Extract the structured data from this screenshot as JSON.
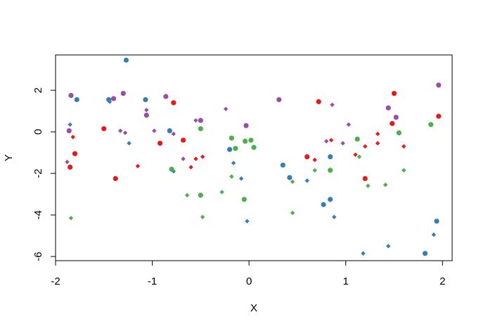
{
  "chart_data": {
    "type": "scatter",
    "xlabel": "X",
    "ylabel": "Y",
    "xlim": [
      -2.0,
      2.1
    ],
    "ylim": [
      -6.2,
      3.7
    ],
    "x_ticks": [
      -2,
      -1,
      0,
      1,
      2
    ],
    "y_ticks": [
      -6,
      -4,
      -2,
      0,
      2
    ],
    "x_tick_labels": [
      "-2",
      "-1",
      "0",
      "1",
      "2"
    ],
    "y_tick_labels": [
      "-6",
      "-4",
      "-2",
      "0",
      "2"
    ],
    "grid": false,
    "series": [
      {
        "color": "#e41a1c",
        "points": [
          {
            "x": -1.85,
            "y": -1.7,
            "shape": "circle"
          },
          {
            "x": -1.8,
            "y": -1.05,
            "shape": "circle"
          },
          {
            "x": -1.82,
            "y": -0.25,
            "shape": "diamond"
          },
          {
            "x": -1.5,
            "y": 0.15,
            "shape": "circle"
          },
          {
            "x": -1.38,
            "y": -2.25,
            "shape": "circle"
          },
          {
            "x": -1.15,
            "y": -1.65,
            "shape": "diamond"
          },
          {
            "x": -0.92,
            "y": -0.55,
            "shape": "circle"
          },
          {
            "x": -0.78,
            "y": 1.4,
            "shape": "circle"
          },
          {
            "x": -0.68,
            "y": -0.4,
            "shape": "circle"
          },
          {
            "x": -0.6,
            "y": -1.7,
            "shape": "diamond"
          },
          {
            "x": -0.55,
            "y": -1.3,
            "shape": "diamond"
          },
          {
            "x": -0.48,
            "y": -1.2,
            "shape": "diamond"
          },
          {
            "x": 0.6,
            "y": -1.2,
            "shape": "circle"
          },
          {
            "x": 0.68,
            "y": -1.35,
            "shape": "diamond"
          },
          {
            "x": 0.72,
            "y": 1.45,
            "shape": "circle"
          },
          {
            "x": 0.85,
            "y": -0.4,
            "shape": "diamond"
          },
          {
            "x": 1.1,
            "y": -1.1,
            "shape": "diamond"
          },
          {
            "x": 1.2,
            "y": -2.25,
            "shape": "circle"
          },
          {
            "x": 1.2,
            "y": -0.7,
            "shape": "diamond"
          },
          {
            "x": 1.33,
            "y": -0.1,
            "shape": "diamond"
          },
          {
            "x": 1.33,
            "y": -0.55,
            "shape": "diamond"
          },
          {
            "x": 1.48,
            "y": 0.4,
            "shape": "circle"
          },
          {
            "x": 1.5,
            "y": 1.85,
            "shape": "circle"
          },
          {
            "x": 1.6,
            "y": -0.7,
            "shape": "diamond"
          },
          {
            "x": 1.96,
            "y": 0.75,
            "shape": "circle"
          }
        ]
      },
      {
        "color": "#377eb8",
        "points": [
          {
            "x": -1.85,
            "y": 0.35,
            "shape": "diamond"
          },
          {
            "x": -1.78,
            "y": 1.55,
            "shape": "circle"
          },
          {
            "x": -1.45,
            "y": 1.55,
            "shape": "circle"
          },
          {
            "x": -1.44,
            "y": 1.45,
            "shape": "diamond"
          },
          {
            "x": -1.27,
            "y": 3.45,
            "shape": "circle"
          },
          {
            "x": -1.24,
            "y": -0.55,
            "shape": "diamond"
          },
          {
            "x": -1.07,
            "y": 1.55,
            "shape": "circle"
          },
          {
            "x": -0.82,
            "y": 0.05,
            "shape": "circle"
          },
          {
            "x": -0.78,
            "y": -1.9,
            "shape": "diamond"
          },
          {
            "x": -0.2,
            "y": -0.85,
            "shape": "circle"
          },
          {
            "x": -0.16,
            "y": -1.5,
            "shape": "diamond"
          },
          {
            "x": -0.08,
            "y": -2.25,
            "shape": "diamond"
          },
          {
            "x": -0.02,
            "y": -4.3,
            "shape": "diamond"
          },
          {
            "x": 0.35,
            "y": -1.6,
            "shape": "circle"
          },
          {
            "x": 0.42,
            "y": -2.2,
            "shape": "circle"
          },
          {
            "x": 0.6,
            "y": -2.35,
            "shape": "diamond"
          },
          {
            "x": 0.77,
            "y": -3.5,
            "shape": "circle"
          },
          {
            "x": 0.84,
            "y": -1.2,
            "shape": "circle"
          },
          {
            "x": 0.84,
            "y": -3.25,
            "shape": "circle"
          },
          {
            "x": 0.88,
            "y": -4.1,
            "shape": "diamond"
          },
          {
            "x": 1.18,
            "y": -5.85,
            "shape": "diamond"
          },
          {
            "x": 1.44,
            "y": -5.5,
            "shape": "diamond"
          },
          {
            "x": 1.82,
            "y": -5.85,
            "shape": "circle"
          },
          {
            "x": 1.91,
            "y": -4.95,
            "shape": "diamond"
          },
          {
            "x": 1.94,
            "y": -4.3,
            "shape": "circle"
          }
        ]
      },
      {
        "color": "#4daf4a",
        "points": [
          {
            "x": -1.84,
            "y": -4.15,
            "shape": "diamond"
          },
          {
            "x": -0.8,
            "y": -1.8,
            "shape": "circle"
          },
          {
            "x": -0.64,
            "y": -3.05,
            "shape": "diamond"
          },
          {
            "x": -0.5,
            "y": -3.05,
            "shape": "circle"
          },
          {
            "x": -0.5,
            "y": 0.15,
            "shape": "circle"
          },
          {
            "x": -0.48,
            "y": -4.1,
            "shape": "diamond"
          },
          {
            "x": -0.28,
            "y": -2.9,
            "shape": "diamond"
          },
          {
            "x": -0.18,
            "y": -0.3,
            "shape": "circle"
          },
          {
            "x": -0.18,
            "y": -2.15,
            "shape": "diamond"
          },
          {
            "x": -0.14,
            "y": -0.8,
            "shape": "circle"
          },
          {
            "x": -0.05,
            "y": -3.25,
            "shape": "circle"
          },
          {
            "x": -0.04,
            "y": -0.45,
            "shape": "circle"
          },
          {
            "x": 0.02,
            "y": -0.4,
            "shape": "circle"
          },
          {
            "x": 0.05,
            "y": -0.75,
            "shape": "circle"
          },
          {
            "x": 0.45,
            "y": -2.4,
            "shape": "diamond"
          },
          {
            "x": 0.45,
            "y": -3.9,
            "shape": "diamond"
          },
          {
            "x": 0.68,
            "y": -1.85,
            "shape": "diamond"
          },
          {
            "x": 0.84,
            "y": -1.85,
            "shape": "circle"
          },
          {
            "x": 1.12,
            "y": -0.35,
            "shape": "circle"
          },
          {
            "x": 1.14,
            "y": -1.2,
            "shape": "diamond"
          },
          {
            "x": 1.23,
            "y": -2.6,
            "shape": "diamond"
          },
          {
            "x": 1.41,
            "y": -2.55,
            "shape": "diamond"
          },
          {
            "x": 1.55,
            "y": -0.05,
            "shape": "circle"
          },
          {
            "x": 1.6,
            "y": -1.85,
            "shape": "diamond"
          },
          {
            "x": 1.88,
            "y": 0.35,
            "shape": "circle"
          }
        ]
      },
      {
        "color": "#984ea3",
        "points": [
          {
            "x": -1.88,
            "y": -1.45,
            "shape": "diamond"
          },
          {
            "x": -1.86,
            "y": 0.05,
            "shape": "circle"
          },
          {
            "x": -1.84,
            "y": 1.75,
            "shape": "circle"
          },
          {
            "x": -1.4,
            "y": 1.6,
            "shape": "circle"
          },
          {
            "x": -1.33,
            "y": 0.05,
            "shape": "diamond"
          },
          {
            "x": -1.3,
            "y": 1.85,
            "shape": "circle"
          },
          {
            "x": -1.28,
            "y": -0.05,
            "shape": "diamond"
          },
          {
            "x": -1.06,
            "y": 1.05,
            "shape": "diamond"
          },
          {
            "x": -1.06,
            "y": 0.8,
            "shape": "circle"
          },
          {
            "x": -0.98,
            "y": 0.05,
            "shape": "diamond"
          },
          {
            "x": -0.86,
            "y": 1.7,
            "shape": "circle"
          },
          {
            "x": -0.78,
            "y": -0.1,
            "shape": "diamond"
          },
          {
            "x": -0.68,
            "y": -1.3,
            "shape": "diamond"
          },
          {
            "x": -0.55,
            "y": 0.55,
            "shape": "diamond"
          },
          {
            "x": -0.5,
            "y": 0.55,
            "shape": "circle"
          },
          {
            "x": -0.24,
            "y": 1.1,
            "shape": "diamond"
          },
          {
            "x": -0.03,
            "y": 0.3,
            "shape": "circle"
          },
          {
            "x": 0.31,
            "y": 1.55,
            "shape": "circle"
          },
          {
            "x": 0.8,
            "y": -0.45,
            "shape": "diamond"
          },
          {
            "x": 0.86,
            "y": 1.3,
            "shape": "diamond"
          },
          {
            "x": 0.97,
            "y": -0.55,
            "shape": "diamond"
          },
          {
            "x": 1.03,
            "y": 0.35,
            "shape": "diamond"
          },
          {
            "x": 1.44,
            "y": 1.15,
            "shape": "circle"
          },
          {
            "x": 1.52,
            "y": 0.7,
            "shape": "circle"
          },
          {
            "x": 1.96,
            "y": 2.25,
            "shape": "circle"
          }
        ]
      }
    ]
  }
}
